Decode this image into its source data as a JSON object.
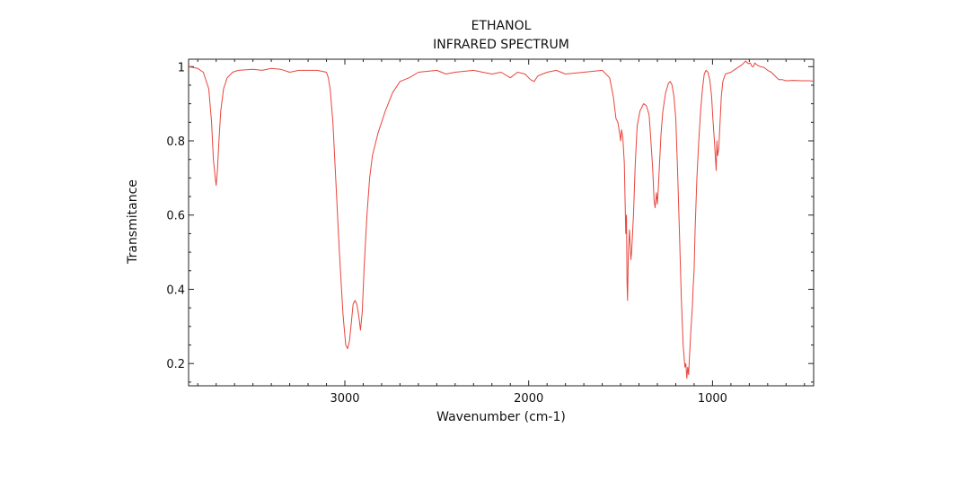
{
  "chart_data": {
    "type": "line",
    "title": "ETHANOL",
    "subtitle": "INFRARED SPECTRUM",
    "xlabel": "Wavenumber (cm-1)",
    "ylabel": "Transmitance",
    "xlim": [
      3850,
      450
    ],
    "ylim": [
      0.14,
      1.02
    ],
    "x_reversed": true,
    "xticks": [
      3000,
      2000,
      1000
    ],
    "yticks": [
      0.2,
      0.4,
      0.6,
      0.8,
      1
    ],
    "ytick_labels": [
      "0.2",
      "0.4",
      "0.6",
      "0.8",
      "1"
    ],
    "xtick_labels": [
      "3000",
      "2000",
      "1000"
    ],
    "grid": false,
    "line_color": "#e8453c",
    "series": [
      {
        "values": [
          [
            3850,
            1.0
          ],
          [
            3800,
            0.995
          ],
          [
            3770,
            0.985
          ],
          [
            3740,
            0.94
          ],
          [
            3725,
            0.85
          ],
          [
            3715,
            0.75
          ],
          [
            3705,
            0.7
          ],
          [
            3700,
            0.68
          ],
          [
            3693,
            0.72
          ],
          [
            3685,
            0.8
          ],
          [
            3675,
            0.88
          ],
          [
            3660,
            0.94
          ],
          [
            3640,
            0.97
          ],
          [
            3610,
            0.985
          ],
          [
            3580,
            0.99
          ],
          [
            3500,
            0.993
          ],
          [
            3450,
            0.99
          ],
          [
            3400,
            0.995
          ],
          [
            3350,
            0.993
          ],
          [
            3300,
            0.985
          ],
          [
            3250,
            0.99
          ],
          [
            3150,
            0.99
          ],
          [
            3100,
            0.985
          ],
          [
            3090,
            0.97
          ],
          [
            3080,
            0.94
          ],
          [
            3065,
            0.85
          ],
          [
            3050,
            0.7
          ],
          [
            3030,
            0.5
          ],
          [
            3010,
            0.33
          ],
          [
            2995,
            0.25
          ],
          [
            2985,
            0.24
          ],
          [
            2975,
            0.26
          ],
          [
            2965,
            0.31
          ],
          [
            2955,
            0.36
          ],
          [
            2945,
            0.37
          ],
          [
            2935,
            0.36
          ],
          [
            2925,
            0.33
          ],
          [
            2915,
            0.29
          ],
          [
            2905,
            0.34
          ],
          [
            2895,
            0.46
          ],
          [
            2880,
            0.6
          ],
          [
            2865,
            0.7
          ],
          [
            2850,
            0.76
          ],
          [
            2820,
            0.82
          ],
          [
            2780,
            0.88
          ],
          [
            2740,
            0.93
          ],
          [
            2700,
            0.96
          ],
          [
            2650,
            0.97
          ],
          [
            2600,
            0.985
          ],
          [
            2500,
            0.99
          ],
          [
            2450,
            0.98
          ],
          [
            2400,
            0.985
          ],
          [
            2300,
            0.99
          ],
          [
            2250,
            0.985
          ],
          [
            2200,
            0.98
          ],
          [
            2150,
            0.985
          ],
          [
            2100,
            0.97
          ],
          [
            2060,
            0.985
          ],
          [
            2020,
            0.98
          ],
          [
            1990,
            0.965
          ],
          [
            1970,
            0.96
          ],
          [
            1950,
            0.975
          ],
          [
            1900,
            0.985
          ],
          [
            1850,
            0.99
          ],
          [
            1800,
            0.98
          ],
          [
            1700,
            0.985
          ],
          [
            1600,
            0.99
          ],
          [
            1560,
            0.97
          ],
          [
            1540,
            0.92
          ],
          [
            1525,
            0.86
          ],
          [
            1515,
            0.85
          ],
          [
            1505,
            0.82
          ],
          [
            1500,
            0.8
          ],
          [
            1495,
            0.83
          ],
          [
            1488,
            0.81
          ],
          [
            1480,
            0.74
          ],
          [
            1475,
            0.62
          ],
          [
            1472,
            0.55
          ],
          [
            1468,
            0.6
          ],
          [
            1465,
            0.42
          ],
          [
            1462,
            0.37
          ],
          [
            1458,
            0.5
          ],
          [
            1452,
            0.56
          ],
          [
            1448,
            0.52
          ],
          [
            1444,
            0.48
          ],
          [
            1440,
            0.5
          ],
          [
            1430,
            0.6
          ],
          [
            1420,
            0.74
          ],
          [
            1410,
            0.84
          ],
          [
            1395,
            0.88
          ],
          [
            1375,
            0.9
          ],
          [
            1360,
            0.895
          ],
          [
            1345,
            0.87
          ],
          [
            1335,
            0.8
          ],
          [
            1325,
            0.72
          ],
          [
            1318,
            0.64
          ],
          [
            1312,
            0.62
          ],
          [
            1305,
            0.66
          ],
          [
            1300,
            0.63
          ],
          [
            1295,
            0.67
          ],
          [
            1290,
            0.72
          ],
          [
            1280,
            0.82
          ],
          [
            1270,
            0.88
          ],
          [
            1255,
            0.93
          ],
          [
            1240,
            0.955
          ],
          [
            1230,
            0.96
          ],
          [
            1220,
            0.95
          ],
          [
            1210,
            0.92
          ],
          [
            1200,
            0.86
          ],
          [
            1190,
            0.72
          ],
          [
            1180,
            0.55
          ],
          [
            1170,
            0.38
          ],
          [
            1160,
            0.25
          ],
          [
            1150,
            0.19
          ],
          [
            1145,
            0.2
          ],
          [
            1140,
            0.16
          ],
          [
            1135,
            0.19
          ],
          [
            1130,
            0.17
          ],
          [
            1125,
            0.22
          ],
          [
            1118,
            0.29
          ],
          [
            1110,
            0.35
          ],
          [
            1105,
            0.41
          ],
          [
            1100,
            0.45
          ],
          [
            1095,
            0.56
          ],
          [
            1085,
            0.7
          ],
          [
            1075,
            0.8
          ],
          [
            1065,
            0.88
          ],
          [
            1055,
            0.94
          ],
          [
            1045,
            0.98
          ],
          [
            1035,
            0.99
          ],
          [
            1025,
            0.985
          ],
          [
            1015,
            0.965
          ],
          [
            1005,
            0.92
          ],
          [
            998,
            0.86
          ],
          [
            990,
            0.8
          ],
          [
            984,
            0.75
          ],
          [
            980,
            0.72
          ],
          [
            976,
            0.8
          ],
          [
            972,
            0.76
          ],
          [
            966,
            0.78
          ],
          [
            960,
            0.84
          ],
          [
            952,
            0.92
          ],
          [
            944,
            0.96
          ],
          [
            930,
            0.98
          ],
          [
            900,
            0.985
          ],
          [
            870,
            0.995
          ],
          [
            840,
            1.005
          ],
          [
            820,
            1.015
          ],
          [
            805,
            1.008
          ],
          [
            795,
            1.01
          ],
          [
            785,
            1.0
          ],
          [
            778,
            1.0
          ],
          [
            770,
            1.01
          ],
          [
            760,
            1.005
          ],
          [
            740,
            1.0
          ],
          [
            720,
            0.998
          ],
          [
            700,
            0.99
          ],
          [
            680,
            0.985
          ],
          [
            660,
            0.975
          ],
          [
            640,
            0.965
          ],
          [
            620,
            0.965
          ],
          [
            600,
            0.962
          ],
          [
            560,
            0.963
          ],
          [
            520,
            0.962
          ],
          [
            480,
            0.962
          ],
          [
            450,
            0.961
          ]
        ]
      }
    ]
  }
}
